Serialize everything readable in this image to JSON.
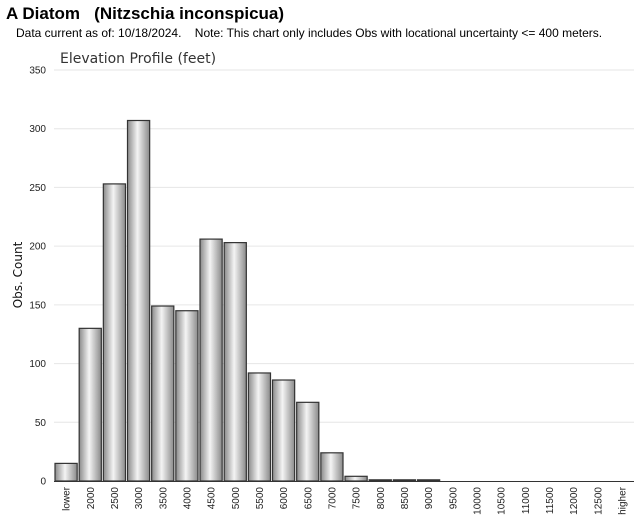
{
  "header": {
    "title": "A Diatom   (Nitzschia inconspicua)",
    "note": "Data current as of: 10/18/2024.    Note: This chart only includes Obs with locational uncertainty <= 400 meters."
  },
  "chart_data": {
    "type": "bar",
    "title": "Elevation Profile (feet)",
    "xlabel": "",
    "ylabel": "Obs. Count",
    "ylim": [
      0,
      350
    ],
    "yticks": [
      0,
      50,
      100,
      150,
      200,
      250,
      300,
      350
    ],
    "grid": true,
    "categories": [
      "lower",
      "2000",
      "2500",
      "3000",
      "3500",
      "4000",
      "4500",
      "5000",
      "5500",
      "6000",
      "6500",
      "7000",
      "7500",
      "8000",
      "8500",
      "9000",
      "9500",
      "10000",
      "10500",
      "11000",
      "11500",
      "12000",
      "12500",
      "higher"
    ],
    "values": [
      15,
      130,
      253,
      307,
      149,
      145,
      206,
      203,
      92,
      86,
      67,
      24,
      4,
      1,
      1,
      1,
      0,
      0,
      0,
      0,
      0,
      0,
      0,
      0
    ],
    "colors": {
      "bar_light": "#f4f4f4",
      "bar_dark": "#8a8a8a",
      "bar_stroke": "#333333",
      "grid": "#e6e6e6",
      "axis": "#333333"
    }
  }
}
